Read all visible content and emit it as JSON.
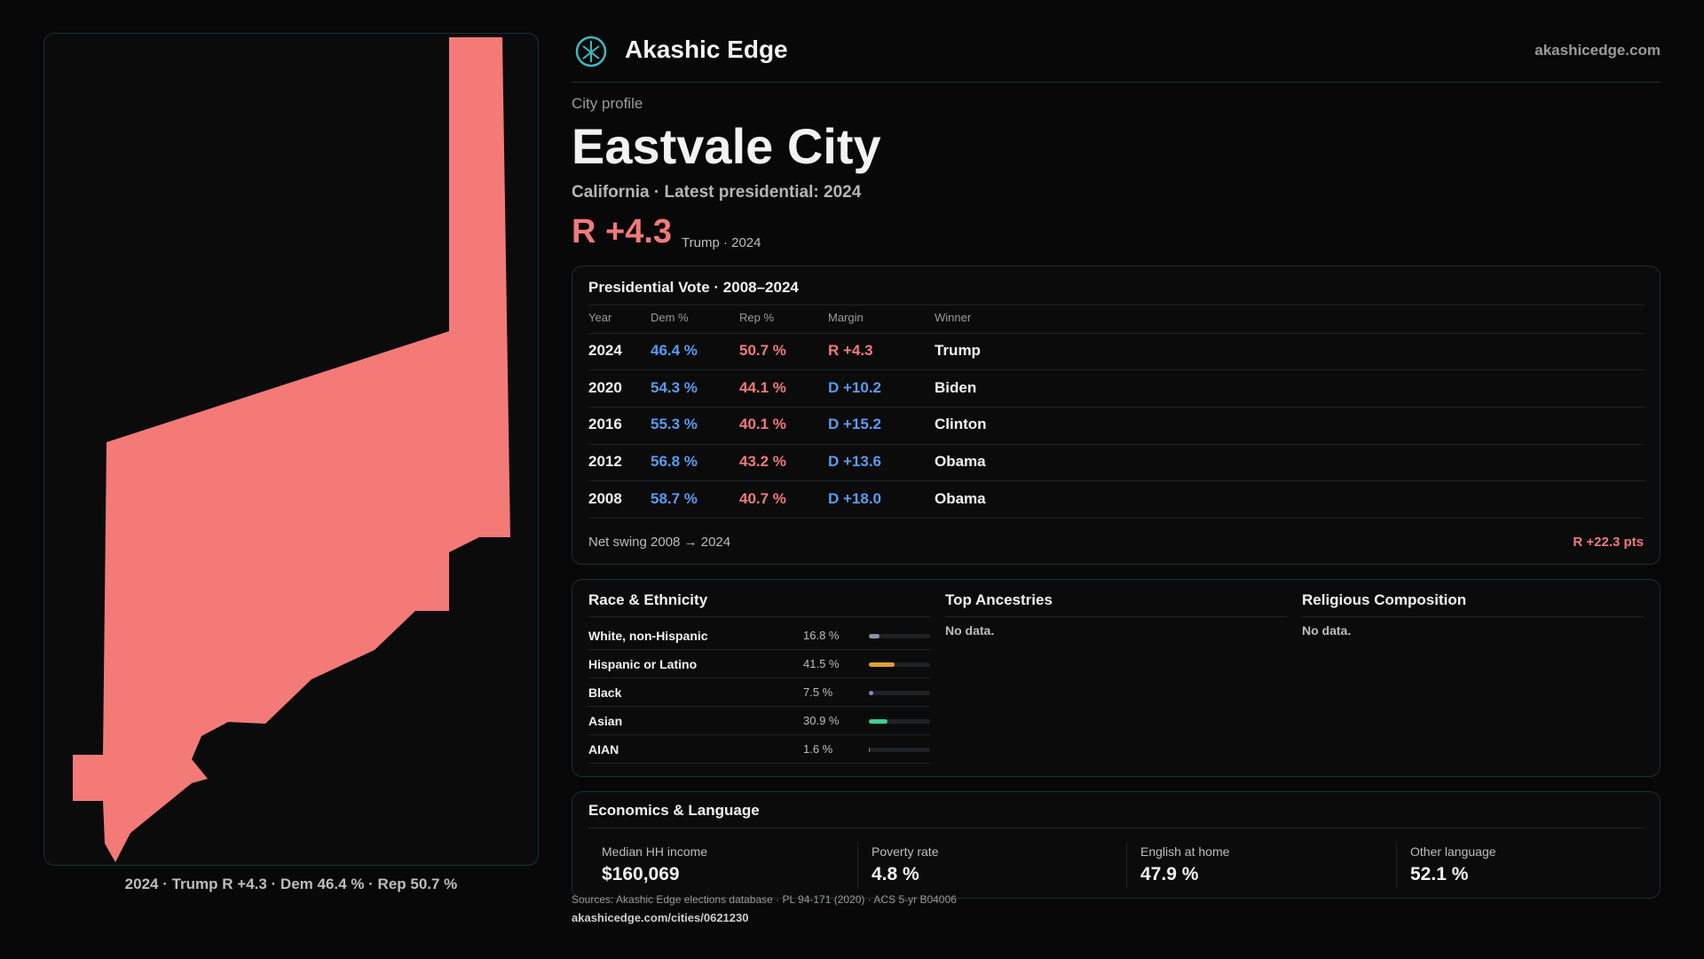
{
  "header": {
    "brand": "Akashic Edge",
    "domain": "akashicedge.com"
  },
  "profile": {
    "kicker": "City profile",
    "title": "Eastvale City",
    "subtitle": "California · Latest presidential: 2024",
    "margin": "R +4.3",
    "margin_note": "Trump · 2024"
  },
  "map": {
    "caption": "2024 · Trump R +4.3 · Dem 46.4 % · Rep 50.7 %"
  },
  "presidential": {
    "title": "Presidential Vote · 2008–2024",
    "columns": [
      "Year",
      "Dem %",
      "Rep %",
      "Margin",
      "Winner"
    ],
    "rows": [
      [
        "2024",
        "46.4 %",
        "50.7 %",
        "R +4.3",
        "Trump"
      ],
      [
        "2020",
        "54.3 %",
        "44.1 %",
        "D +10.2",
        "Biden"
      ],
      [
        "2016",
        "55.3 %",
        "40.1 %",
        "D +15.2",
        "Clinton"
      ],
      [
        "2012",
        "56.8 %",
        "43.2 %",
        "D +13.6",
        "Obama"
      ],
      [
        "2008",
        "58.7 %",
        "40.7 %",
        "D +18.0",
        "Obama"
      ]
    ],
    "footer_label": "Net swing 2008 → 2024",
    "footer_value": "R +22.3 pts"
  },
  "race": {
    "title": "Race & Ethnicity",
    "rows": [
      {
        "label": "White, non-Hispanic",
        "value": 16.8,
        "value_label": "16.8 %",
        "color": "#8a93a6"
      },
      {
        "label": "Hispanic or Latino",
        "value": 41.5,
        "value_label": "41.5 %",
        "color": "#e0a030"
      },
      {
        "label": "Black",
        "value": 7.5,
        "value_label": "7.5 %",
        "color": "#8b7fe0"
      },
      {
        "label": "Asian",
        "value": 30.9,
        "value_label": "30.9 %",
        "color": "#3fcf8e"
      },
      {
        "label": "AIAN",
        "value": 1.6,
        "value_label": "1.6 %",
        "color": "#c0703a"
      }
    ]
  },
  "ancestries": {
    "title": "Top Ancestries",
    "note": "No data."
  },
  "religion": {
    "title": "Religious Composition",
    "note": "No data."
  },
  "economics": {
    "title": "Economics & Language",
    "items": [
      {
        "label": "Median HH income",
        "value": "$160,069"
      },
      {
        "label": "Poverty rate",
        "value": "4.8 %"
      },
      {
        "label": "English at home",
        "value": "47.9 %"
      },
      {
        "label": "Other language",
        "value": "52.1 %"
      }
    ]
  },
  "footer": {
    "sources": "Sources: Akashic Edge elections database · PL 94-171 (2020) · ACS 5-yr B04006",
    "url": "akashicedge.com/cities/0621230"
  }
}
